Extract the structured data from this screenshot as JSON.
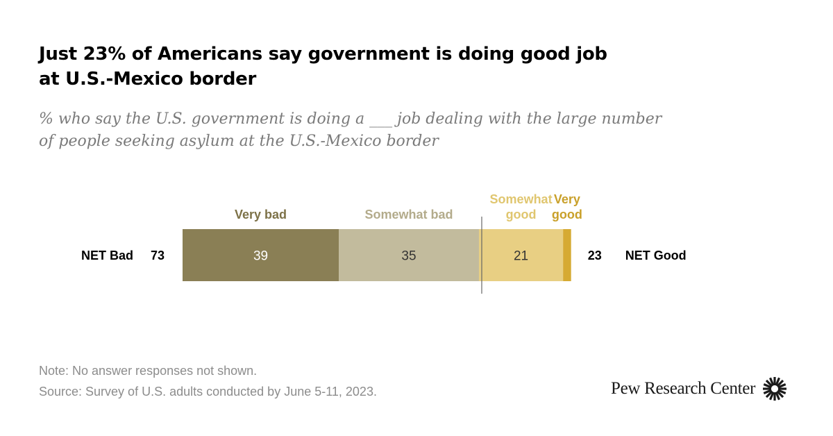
{
  "title": {
    "line1": "Just 23% of Americans say government is doing good job",
    "line2": "at U.S.-Mexico border"
  },
  "subtitle": {
    "line1": "% who say the U.S. government is doing a ___ job dealing with the large number",
    "line2": "of people seeking asylum at the U.S.-Mexico border"
  },
  "chart_data": {
    "type": "bar",
    "orientation": "horizontal-stacked",
    "categories": [
      "Very bad",
      "Somewhat bad",
      "Somewhat good",
      "Very good"
    ],
    "series": [
      {
        "name": "Very bad",
        "label_lines": [
          "Very bad"
        ],
        "value": 39,
        "color": "#8a7f55",
        "label_color": "#7d7248",
        "value_color": "#ffffff",
        "value_shown": "39"
      },
      {
        "name": "Somewhat bad",
        "label_lines": [
          "Somewhat bad"
        ],
        "value": 35,
        "color": "#c2bb9d",
        "label_color": "#b3ab8b",
        "value_color": "#333333",
        "value_shown": "35"
      },
      {
        "name": "Somewhat good",
        "label_lines": [
          "Somewhat",
          "good"
        ],
        "value": 21,
        "color": "#e8cf83",
        "label_color": "#e0c66f",
        "value_color": "#333333",
        "value_shown": "21"
      },
      {
        "name": "Very good",
        "label_lines": [
          "Very",
          "good"
        ],
        "value": 2,
        "color": "#d6aa33",
        "label_color": "#c9a02a",
        "value_color": "#333333",
        "value_shown": ""
      }
    ],
    "net_left": {
      "label": "NET Bad",
      "value": "73"
    },
    "net_right": {
      "label": "NET Good",
      "value": "23"
    }
  },
  "footer": {
    "note": "Note: No answer responses not shown.",
    "source": "Source: Survey of U.S. adults conducted by June 5-11, 2023.",
    "logo_text": "Pew Research Center",
    "logo_icon": "sunburst-icon"
  }
}
